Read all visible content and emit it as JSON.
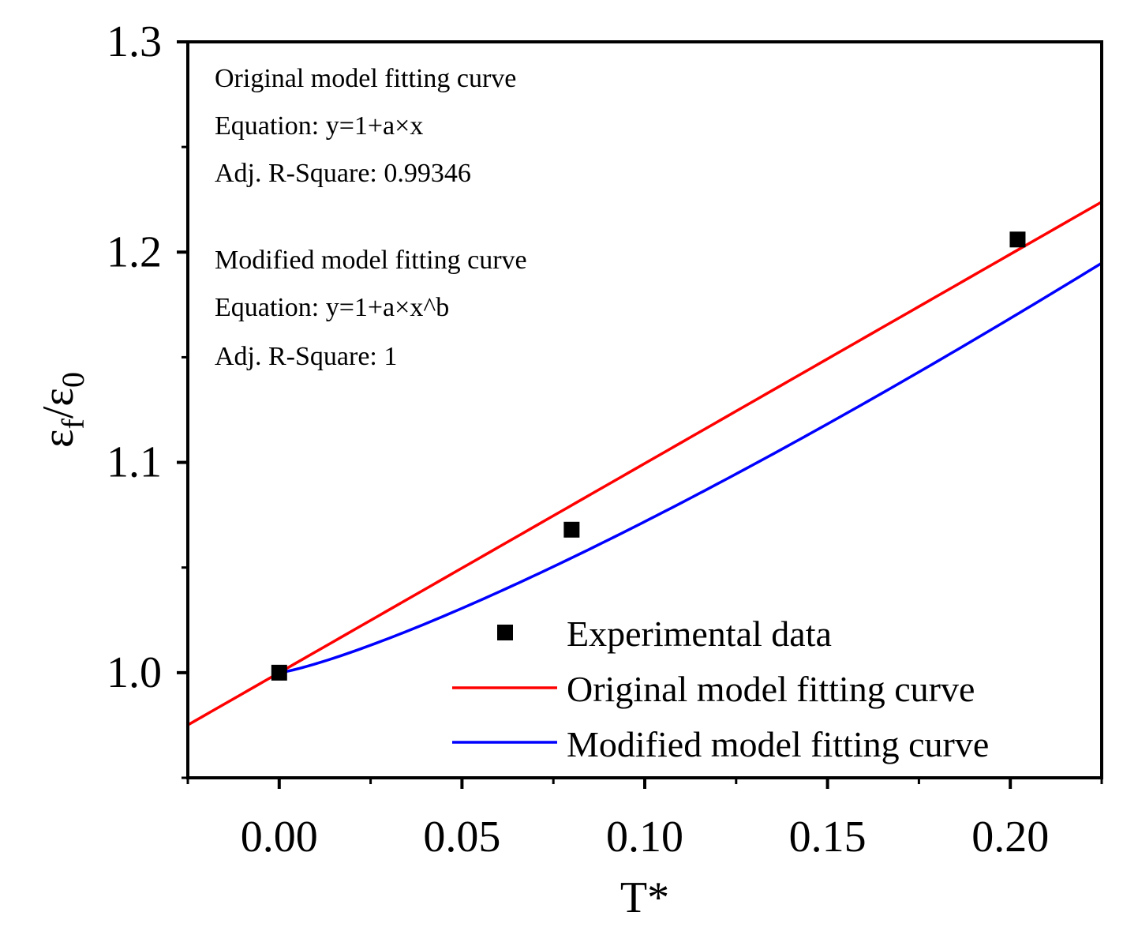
{
  "chart_data": {
    "type": "scatter",
    "title": "",
    "xlabel": "T*",
    "ylabel": {
      "main": "ε",
      "sub1": "f",
      "sep": "/",
      "main2": "ε",
      "sub2": "0"
    },
    "xlim": [
      -0.025,
      0.225
    ],
    "ylim": [
      0.95,
      1.3
    ],
    "x_ticks": [
      0.0,
      0.05,
      0.1,
      0.15,
      0.2
    ],
    "x_tick_labels": [
      "0.00",
      "0.05",
      "0.10",
      "0.15",
      "0.20"
    ],
    "x_minor_ticks": [
      -0.025,
      0.025,
      0.075,
      0.125,
      0.175,
      0.225
    ],
    "y_ticks": [
      1.0,
      1.1,
      1.2,
      1.3
    ],
    "y_tick_labels": [
      "1.0",
      "1.1",
      "1.2",
      "1.3"
    ],
    "y_minor_ticks": [
      0.95,
      1.05,
      1.15,
      1.25
    ],
    "series": [
      {
        "name": "Experimental data",
        "kind": "scatter",
        "color": "#000000",
        "marker": "square",
        "x": [
          0.0,
          0.08,
          0.202
        ],
        "y": [
          1.0,
          1.068,
          1.206
        ]
      },
      {
        "name": "Original model fitting curve",
        "kind": "line",
        "color": "#ff0000",
        "equation": "y=1+a*x",
        "a": 0.995
      },
      {
        "name": "Modified model fitting curve",
        "kind": "line",
        "color": "#0000ff",
        "equation": "y=1+a*x^b",
        "a": 1.22,
        "b": 1.23
      }
    ],
    "annotations": [
      "Original model fitting curve",
      "Equation: y=1+a×x",
      "Adj. R-Square: 0.99346",
      "Modified model fitting curve",
      "Equation: y=1+a×x^b",
      "Adj. R-Square: 1"
    ],
    "legend": {
      "position": "bottom-right",
      "entries": [
        "Experimental data",
        "Original model fitting curve",
        "Modified model fitting curve"
      ]
    }
  }
}
